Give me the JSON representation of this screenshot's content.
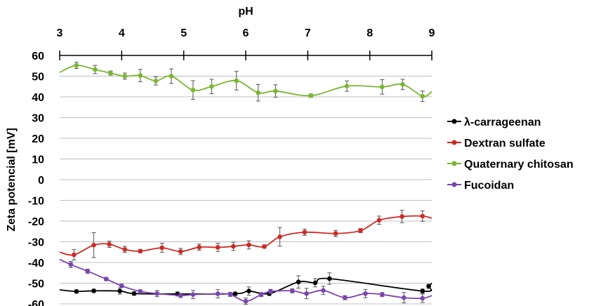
{
  "chart_data": {
    "type": "line",
    "title": "",
    "xlabel": "pH",
    "ylabel": "Zeta potencial [mV]",
    "xlim": [
      3,
      9
    ],
    "ylim": [
      -60,
      60
    ],
    "x_ticks": [
      "3",
      "4",
      "5",
      "6",
      "7",
      "8",
      "9"
    ],
    "y_ticks": [
      "60",
      "50",
      "40",
      "30",
      "20",
      "10",
      "0",
      "-10",
      "-20",
      "-30",
      "-40",
      "-50",
      "-60"
    ],
    "grid": "horizontal",
    "x_axis_position": "top",
    "legend_position": "right",
    "series": [
      {
        "name": "λ-carrageenan",
        "color": "#000000",
        "points": [
          {
            "x": 3.0,
            "y": -53.2,
            "err": 0
          },
          {
            "x": 3.27,
            "y": -54.0,
            "err": 0.8
          },
          {
            "x": 3.55,
            "y": -53.7,
            "err": 0.8
          },
          {
            "x": 3.97,
            "y": -53.8,
            "err": 1.5
          },
          {
            "x": 4.2,
            "y": -55.0,
            "err": 0.8
          },
          {
            "x": 4.9,
            "y": -55.2,
            "err": 1.0
          },
          {
            "x": 5.83,
            "y": -55.1,
            "err": 0.8
          },
          {
            "x": 6.05,
            "y": -53.8,
            "err": 2.0
          },
          {
            "x": 6.38,
            "y": -55.0,
            "err": 1.0
          },
          {
            "x": 6.85,
            "y": -49.4,
            "err": 3.0
          },
          {
            "x": 7.12,
            "y": -49.8,
            "err": 2.0
          },
          {
            "x": 7.35,
            "y": -47.8,
            "err": 2.8
          },
          {
            "x": 8.85,
            "y": -53.8,
            "err": 1.0
          },
          {
            "x": 8.95,
            "y": -51.5,
            "err": 1.0
          },
          {
            "x": 9.0,
            "y": -50.0,
            "err": 0
          }
        ]
      },
      {
        "name": "Dextran sulfate",
        "color": "#cc2a24",
        "points": [
          {
            "x": 3.0,
            "y": -35.0,
            "err": 0
          },
          {
            "x": 3.23,
            "y": -36.3,
            "err": 2.5
          },
          {
            "x": 3.55,
            "y": -31.6,
            "err": 6.0
          },
          {
            "x": 3.8,
            "y": -31.2,
            "err": 1.5
          },
          {
            "x": 4.05,
            "y": -33.7,
            "err": 1.5
          },
          {
            "x": 4.3,
            "y": -34.5,
            "err": 0.8
          },
          {
            "x": 4.65,
            "y": -32.9,
            "err": 2.2
          },
          {
            "x": 4.95,
            "y": -34.7,
            "err": 1.5
          },
          {
            "x": 5.25,
            "y": -32.6,
            "err": 1.5
          },
          {
            "x": 5.55,
            "y": -32.7,
            "err": 2.0
          },
          {
            "x": 5.8,
            "y": -32.2,
            "err": 2.0
          },
          {
            "x": 6.05,
            "y": -31.5,
            "err": 2.0
          },
          {
            "x": 6.3,
            "y": -32.3,
            "err": 0.8
          },
          {
            "x": 6.55,
            "y": -27.6,
            "err": 4.5
          },
          {
            "x": 6.95,
            "y": -25.4,
            "err": 1.5
          },
          {
            "x": 7.45,
            "y": -26.0,
            "err": 1.5
          },
          {
            "x": 7.85,
            "y": -24.6,
            "err": 1.0
          },
          {
            "x": 8.15,
            "y": -19.6,
            "err": 2.0
          },
          {
            "x": 8.52,
            "y": -17.8,
            "err": 3.0
          },
          {
            "x": 8.85,
            "y": -17.6,
            "err": 2.5
          },
          {
            "x": 9.0,
            "y": -18.6,
            "err": 0
          }
        ]
      },
      {
        "name": "Quaternary chitosan",
        "color": "#7ab630",
        "points": [
          {
            "x": 3.0,
            "y": 51.8,
            "err": 0
          },
          {
            "x": 3.27,
            "y": 55.2,
            "err": 1.5
          },
          {
            "x": 3.57,
            "y": 53.2,
            "err": 2.0
          },
          {
            "x": 3.82,
            "y": 51.5,
            "err": 1.0
          },
          {
            "x": 4.05,
            "y": 50.0,
            "err": 1.5
          },
          {
            "x": 4.3,
            "y": 50.3,
            "err": 3.0
          },
          {
            "x": 4.55,
            "y": 47.7,
            "err": 2.0
          },
          {
            "x": 4.8,
            "y": 50.0,
            "err": 3.5
          },
          {
            "x": 5.15,
            "y": 43.3,
            "err": 4.5
          },
          {
            "x": 5.45,
            "y": 45.0,
            "err": 3.5
          },
          {
            "x": 5.85,
            "y": 47.8,
            "err": 4.5
          },
          {
            "x": 6.2,
            "y": 42.0,
            "err": 4.0
          },
          {
            "x": 6.48,
            "y": 42.8,
            "err": 3.0
          },
          {
            "x": 7.05,
            "y": 40.6,
            "err": 0.8
          },
          {
            "x": 7.63,
            "y": 45.2,
            "err": 2.5
          },
          {
            "x": 8.2,
            "y": 44.8,
            "err": 3.5
          },
          {
            "x": 8.53,
            "y": 46.0,
            "err": 2.5
          },
          {
            "x": 8.85,
            "y": 40.3,
            "err": 2.5
          },
          {
            "x": 9.0,
            "y": 42.5,
            "err": 0
          }
        ]
      },
      {
        "name": "Fucoidan",
        "color": "#7a44b0",
        "points": [
          {
            "x": 3.0,
            "y": -38.5,
            "err": 0
          },
          {
            "x": 3.18,
            "y": -41.0,
            "err": 1.5
          },
          {
            "x": 3.45,
            "y": -44.2,
            "err": 1.0
          },
          {
            "x": 3.75,
            "y": -48.0,
            "err": 0.8
          },
          {
            "x": 4.0,
            "y": -51.3,
            "err": 0.8
          },
          {
            "x": 4.3,
            "y": -54.0,
            "err": 0.8
          },
          {
            "x": 4.57,
            "y": -55.0,
            "err": 1.5
          },
          {
            "x": 4.95,
            "y": -55.9,
            "err": 1.0
          },
          {
            "x": 5.15,
            "y": -55.5,
            "err": 2.0
          },
          {
            "x": 5.55,
            "y": -55.1,
            "err": 2.0
          },
          {
            "x": 5.75,
            "y": -55.4,
            "err": 1.0
          },
          {
            "x": 6.0,
            "y": -58.7,
            "err": 1.5
          },
          {
            "x": 6.25,
            "y": -55.5,
            "err": 1.0
          },
          {
            "x": 6.4,
            "y": -54.0,
            "err": 1.0
          },
          {
            "x": 6.75,
            "y": -53.7,
            "err": 1.0
          },
          {
            "x": 6.98,
            "y": -55.0,
            "err": 2.5
          },
          {
            "x": 7.25,
            "y": -53.5,
            "err": 2.0
          },
          {
            "x": 7.6,
            "y": -57.0,
            "err": 1.0
          },
          {
            "x": 7.93,
            "y": -55.0,
            "err": 2.0
          },
          {
            "x": 8.2,
            "y": -55.5,
            "err": 1.0
          },
          {
            "x": 8.55,
            "y": -57.0,
            "err": 2.5
          },
          {
            "x": 8.85,
            "y": -57.3,
            "err": 2.0
          },
          {
            "x": 9.0,
            "y": -56.0,
            "err": 0
          }
        ]
      }
    ]
  }
}
